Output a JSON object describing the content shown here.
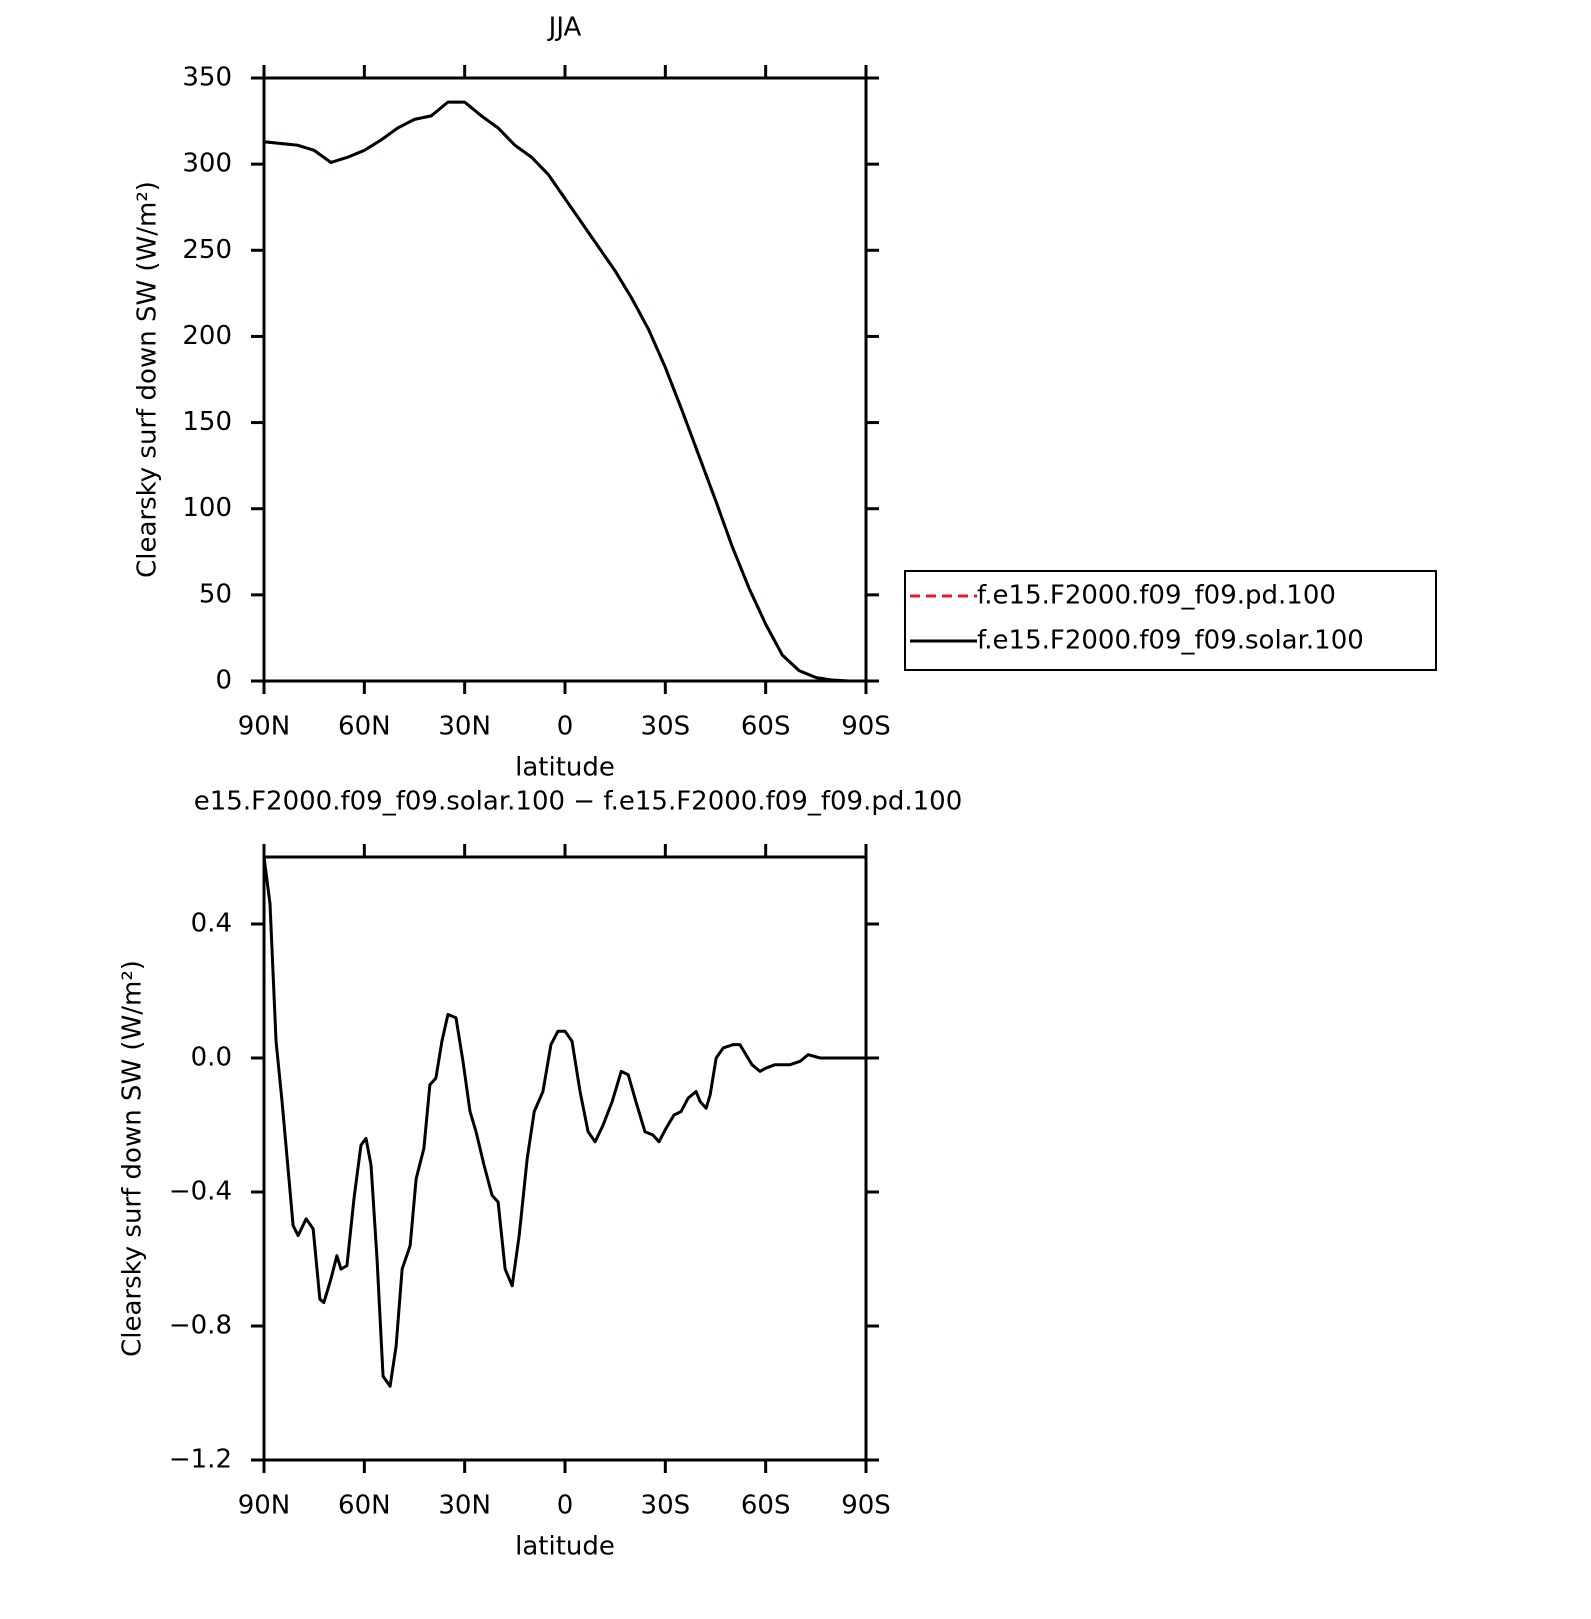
{
  "chart_data": [
    {
      "type": "line",
      "title": "JJA",
      "xlabel": "latitude",
      "ylabel": "Clearsky surf down SW (W/m²)",
      "x": [
        90,
        85,
        80,
        75,
        70,
        65,
        60,
        55,
        50,
        45,
        40,
        35,
        30,
        25,
        20,
        15,
        10,
        5,
        0,
        -5,
        -10,
        -15,
        -20,
        -25,
        -30,
        -35,
        -40,
        -45,
        -50,
        -55,
        -60,
        -65,
        -70,
        -75,
        -80,
        -85,
        -90
      ],
      "xlim": [
        90,
        -90
      ],
      "xticks": [
        {
          "value": 90,
          "label": "90N"
        },
        {
          "value": 60,
          "label": "60N"
        },
        {
          "value": 30,
          "label": "30N"
        },
        0,
        {
          "value": -30,
          "label": "30S"
        },
        {
          "value": -60,
          "label": "60S"
        },
        {
          "value": -90,
          "label": "90S"
        }
      ],
      "ylim": [
        0,
        350
      ],
      "yticks": [
        0,
        50,
        100,
        150,
        200,
        250,
        300,
        350
      ],
      "legend": "right",
      "series": [
        {
          "name": "f.e15.F2000.f09_f09.pd.100",
          "color": "#e41a1c",
          "linestyle": "dashed",
          "values": [
            313,
            312,
            311,
            308,
            301,
            304,
            308,
            314,
            321,
            326,
            328,
            336,
            336,
            328,
            321,
            311,
            304,
            294,
            280,
            266,
            252,
            238,
            222,
            204,
            182,
            157,
            131,
            105,
            78,
            54,
            33,
            15,
            6,
            2,
            0.5,
            0,
            0
          ]
        },
        {
          "name": "f.e15.F2000.f09_f09.solar.100",
          "color": "#000000",
          "linestyle": "solid",
          "values": [
            313,
            312,
            311,
            308,
            301,
            304,
            308,
            314,
            321,
            326,
            328,
            336,
            336,
            328,
            321,
            311,
            304,
            294,
            280,
            266,
            252,
            238,
            222,
            204,
            182,
            157,
            131,
            105,
            78,
            54,
            33,
            15,
            6,
            2,
            0.5,
            0,
            0
          ]
        }
      ]
    },
    {
      "type": "line",
      "title": "e15.F2000.f09_f09.solar.100 − f.e15.F2000.f09_f09.pd.100",
      "xlabel": "latitude",
      "ylabel": "Clearsky surf down SW (W/m²)",
      "x": [
        90,
        88.2,
        86.4,
        84.6,
        81.3,
        79.8,
        77.4,
        75.3,
        73.3,
        72.1,
        70.0,
        68.2,
        67.0,
        65.2,
        63.1,
        61.0,
        59.5,
        58.0,
        56.2,
        54.4,
        52.3,
        50.5,
        48.7,
        46.3,
        44.5,
        42.2,
        40.4,
        38.6,
        36.8,
        35.0,
        32.6,
        30.5,
        28.4,
        26.6,
        24.2,
        21.8,
        20.0,
        17.9,
        15.8,
        13.7,
        11.3,
        9.2,
        6.6,
        4.2,
        2.1,
        0,
        -2.1,
        -4.5,
        -6.9,
        -9.0,
        -11.4,
        -14.1,
        -16.8,
        -18.9,
        -21.2,
        -23.9,
        -26.3,
        -28.1,
        -30.2,
        -32.6,
        -34.7,
        -36.8,
        -39.2,
        -40.4,
        -42.2,
        -43.4,
        -45.2,
        -47.3,
        -50.3,
        -52.3,
        -55.9,
        -58.3,
        -60.1,
        -62.8,
        -67.3,
        -70.3,
        -72.7,
        -76.3,
        -90
      ],
      "xlim": [
        90,
        -90
      ],
      "xticks": [
        {
          "value": 90,
          "label": "90N"
        },
        {
          "value": 60,
          "label": "60N"
        },
        {
          "value": 30,
          "label": "30N"
        },
        0,
        {
          "value": -30,
          "label": "30S"
        },
        {
          "value": -60,
          "label": "60S"
        },
        {
          "value": -90,
          "label": "90S"
        }
      ],
      "ylim": [
        -1.2,
        0.6
      ],
      "yticks": [
        {
          "value": -1.2,
          "label": "−1.2"
        },
        {
          "value": -0.8,
          "label": "−0.8"
        },
        {
          "value": -0.4,
          "label": "−0.4"
        },
        {
          "value": 0,
          "label": "0.0"
        },
        0.4
      ],
      "series": [
        {
          "color": "#000000",
          "linestyle": "solid",
          "values": [
            0.6,
            0.46,
            0.05,
            -0.13,
            -0.5,
            -0.53,
            -0.48,
            -0.51,
            -0.72,
            -0.73,
            -0.66,
            -0.59,
            -0.63,
            -0.62,
            -0.42,
            -0.26,
            -0.24,
            -0.32,
            -0.6,
            -0.95,
            -0.98,
            -0.86,
            -0.63,
            -0.56,
            -0.36,
            -0.27,
            -0.08,
            -0.06,
            0.05,
            0.13,
            0.12,
            -0.01,
            -0.16,
            -0.22,
            -0.32,
            -0.41,
            -0.43,
            -0.63,
            -0.68,
            -0.53,
            -0.3,
            -0.16,
            -0.1,
            0.04,
            0.08,
            0.08,
            0.05,
            -0.1,
            -0.22,
            -0.25,
            -0.2,
            -0.13,
            -0.04,
            -0.05,
            -0.13,
            -0.22,
            -0.23,
            -0.25,
            -0.21,
            -0.17,
            -0.16,
            -0.12,
            -0.1,
            -0.13,
            -0.15,
            -0.11,
            0,
            0.03,
            0.04,
            0.04,
            -0.02,
            -0.04,
            -0.03,
            -0.02,
            -0.02,
            -0.01,
            0.01,
            0,
            0
          ]
        }
      ]
    }
  ]
}
